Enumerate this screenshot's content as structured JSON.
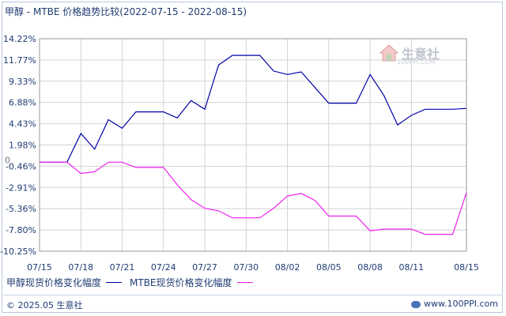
{
  "title": "甲醇 - MTBE 价格趋势比较(2022-07-15 - 2022-08-15)",
  "colors": {
    "series1": "#0000aa",
    "series2": "#ee22ee",
    "grid": "#d3d3d3",
    "axis_text": "#1f3b73",
    "zero_text": "#777777"
  },
  "watermark": {
    "text": "生意社",
    "sub": "100PPI.COM"
  },
  "footer": {
    "left": "© 2025.05 生意社",
    "right": "www.100PPI.com"
  },
  "chart_data": {
    "type": "line",
    "title": "甲醇 - MTBE 价格趋势比较(2022-07-15 - 2022-08-15)",
    "ylim": [
      -10.25,
      14.22
    ],
    "y_ticks": [
      "14.22%",
      "11.77%",
      "9.33%",
      "6.88%",
      "4.43%",
      "1.98%",
      "-0.46%",
      "-2.91%",
      "-5.36%",
      "-7.80%",
      "-10.25%"
    ],
    "y_tick_values": [
      14.22,
      11.77,
      9.33,
      6.88,
      4.43,
      1.98,
      -0.46,
      -2.91,
      -5.36,
      -7.8,
      -10.25
    ],
    "zero_label": "0",
    "x_ticks": [
      "07/15",
      "07/18",
      "07/21",
      "07/24",
      "07/27",
      "07/30",
      "08/02",
      "08/05",
      "08/08",
      "08/11",
      "08/15"
    ],
    "x_tick_days": [
      0,
      3,
      6,
      9,
      12,
      15,
      18,
      21,
      24,
      27,
      31
    ],
    "xlim": [
      0,
      31
    ],
    "grid": true,
    "legend_position": "bottom-left",
    "series": [
      {
        "name": "甲醇现货价格变化幅度",
        "x": [
          0,
          2,
          3,
          4,
          5,
          6,
          7,
          8,
          9,
          10,
          11,
          12,
          13,
          14,
          15,
          16,
          17,
          18,
          19,
          20,
          21,
          22,
          23,
          24,
          25,
          26,
          27,
          28,
          29,
          30,
          31
        ],
        "values": [
          0,
          0,
          3.3,
          1.5,
          4.9,
          3.9,
          5.8,
          5.8,
          5.8,
          5.1,
          7.1,
          6.1,
          11.2,
          12.3,
          12.3,
          12.3,
          10.5,
          10.1,
          10.4,
          8.6,
          6.8,
          6.8,
          6.8,
          10.1,
          7.7,
          4.3,
          5.4,
          6.1,
          6.1,
          6.1,
          6.2
        ]
      },
      {
        "name": "MTBE现货价格变化幅度",
        "x": [
          0,
          2,
          3,
          4,
          5,
          6,
          7,
          8,
          9,
          10,
          11,
          12,
          13,
          14,
          15,
          16,
          17,
          18,
          19,
          20,
          21,
          22,
          23,
          24,
          25,
          26,
          27,
          28,
          29,
          30,
          31
        ],
        "values": [
          0,
          0,
          -1.3,
          -1.1,
          0,
          0,
          -0.6,
          -0.6,
          -0.6,
          -2.6,
          -4.3,
          -5.3,
          -5.6,
          -6.4,
          -6.4,
          -6.4,
          -5.3,
          -3.9,
          -3.6,
          -4.4,
          -6.2,
          -6.2,
          -6.2,
          -7.9,
          -7.7,
          -7.7,
          -7.7,
          -8.3,
          -8.3,
          -8.3,
          -3.5
        ]
      }
    ]
  }
}
